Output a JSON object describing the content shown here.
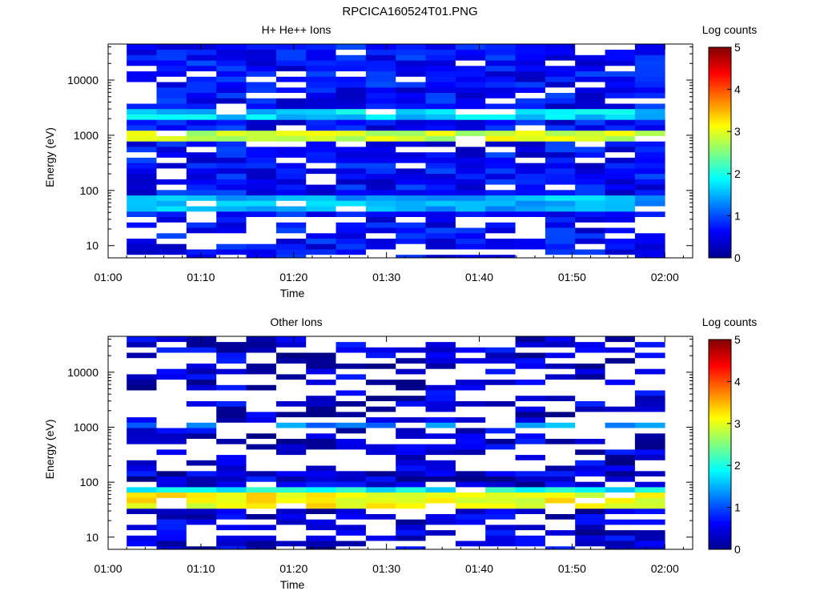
{
  "figure": {
    "title": "RPCICA160524T01.PNG"
  },
  "chart_data": [
    {
      "type": "heatmap",
      "title": "H+ He++ Ions",
      "xlabel": "Time",
      "ylabel": "Energy (eV)",
      "x_ticks": [
        "01:00",
        "01:10",
        "01:20",
        "01:30",
        "01:40",
        "01:50",
        "02:00"
      ],
      "xlim": [
        "01:00",
        "02:03"
      ],
      "y_scale": "log",
      "y_ticks": [
        10,
        100,
        1000,
        10000
      ],
      "ylim": [
        6,
        45000
      ],
      "colorbar": {
        "label": "Log counts",
        "ticks": [
          0,
          1,
          2,
          3,
          4,
          5
        ],
        "range": [
          0,
          5
        ],
        "colormap": "jet"
      },
      "data_extent": [
        "01:02",
        "02:00"
      ],
      "time_bins": 18,
      "features": [
        {
          "energy_range_eV": [
            800,
            1300
          ],
          "log_counts": 3.0,
          "description_hidden": true
        },
        {
          "energy_range_eV": [
            40,
            80
          ],
          "log_counts": 1.6
        },
        {
          "energy_range_eV": [
            1800,
            3000
          ],
          "log_counts": 1.8
        },
        {
          "energy_range_eV": [
            5,
            35
          ],
          "log_counts": 0.2
        }
      ],
      "background_log_counts": [
        0.3,
        1.0
      ]
    },
    {
      "type": "heatmap",
      "title": "Other Ions",
      "xlabel": "Time",
      "ylabel": "Energy (eV)",
      "x_ticks": [
        "01:00",
        "01:10",
        "01:20",
        "01:30",
        "01:40",
        "01:50",
        "02:00"
      ],
      "xlim": [
        "01:00",
        "02:03"
      ],
      "y_scale": "log",
      "y_ticks": [
        10,
        100,
        1000,
        10000
      ],
      "ylim": [
        6,
        45000
      ],
      "colorbar": {
        "label": "Log counts",
        "ticks": [
          0,
          1,
          2,
          3,
          4,
          5
        ],
        "range": [
          0,
          5
        ],
        "colormap": "jet"
      },
      "data_extent": [
        "01:02",
        "02:00"
      ],
      "time_bins": 18,
      "features": [
        {
          "energy_range_eV": [
            35,
            60
          ],
          "log_counts": 3.2
        },
        {
          "energy_range_eV": [
            60,
            90
          ],
          "log_counts": 2.0
        },
        {
          "energy_range_eV": [
            900,
            1300
          ],
          "log_counts": 1.4
        },
        {
          "energy_range_eV": [
            5,
            35
          ],
          "log_counts": 0.3
        }
      ],
      "background_log_counts": [
        0.0,
        0.8
      ],
      "sparse_above_eV": 150
    }
  ]
}
